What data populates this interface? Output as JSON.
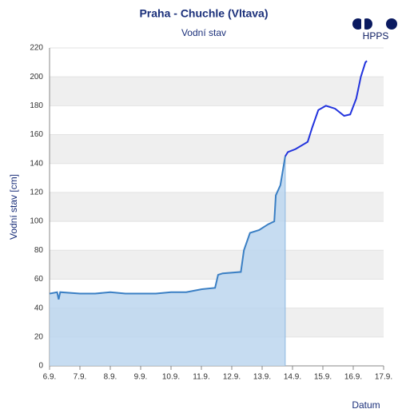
{
  "chart_data": {
    "type": "line",
    "title": "Praha - Chuchle (Vltava)",
    "subtitle": "Vodní stav",
    "logo": "HPPS",
    "ylabel": "Vodní stav [cm]",
    "xlabel": "Datum",
    "ylim": [
      0,
      220
    ],
    "yticks": [
      0,
      20,
      40,
      60,
      80,
      100,
      120,
      140,
      160,
      180,
      200,
      220
    ],
    "xlim": [
      6,
      17
    ],
    "xticks": [
      {
        "value": 6,
        "label": "6.9."
      },
      {
        "value": 7,
        "label": "7.9."
      },
      {
        "value": 8,
        "label": "8.9."
      },
      {
        "value": 9,
        "label": "9.9."
      },
      {
        "value": 10,
        "label": "10.9."
      },
      {
        "value": 11,
        "label": "11.9."
      },
      {
        "value": 12,
        "label": "12.9."
      },
      {
        "value": 13,
        "label": "13.9."
      },
      {
        "value": 14,
        "label": "14.9."
      },
      {
        "value": 15,
        "label": "15.9."
      },
      {
        "value": 16,
        "label": "16.9."
      },
      {
        "value": 17,
        "label": "17.9."
      }
    ],
    "grid": true,
    "series": [
      {
        "color": "#3a7fc4",
        "fill": "#bcd6ee",
        "x": [
          6.0,
          6.25,
          6.3,
          6.35,
          7,
          7.5,
          8,
          8.5,
          9,
          9.5,
          10,
          10.5,
          11,
          11.45,
          11.55,
          11.7,
          12.3,
          12.4,
          12.6,
          12.9,
          13.2,
          13.4,
          13.45,
          13.6,
          13.76
        ],
        "values": [
          50,
          51,
          46,
          51,
          50,
          50,
          51,
          50,
          50,
          50,
          51,
          51,
          53,
          54,
          63,
          64,
          65,
          80,
          92,
          94,
          98,
          100,
          118,
          125,
          145
        ]
      },
      {
        "color": "#2233dd",
        "x": [
          13.76,
          13.85,
          14.1,
          14.5,
          14.65,
          14.85,
          15.1,
          15.4,
          15.7,
          15.9,
          16.1,
          16.25,
          16.4,
          16.45
        ],
        "values": [
          145,
          148,
          150,
          155,
          165,
          177,
          180,
          178,
          173,
          174,
          185,
          200,
          210,
          211
        ]
      }
    ]
  }
}
